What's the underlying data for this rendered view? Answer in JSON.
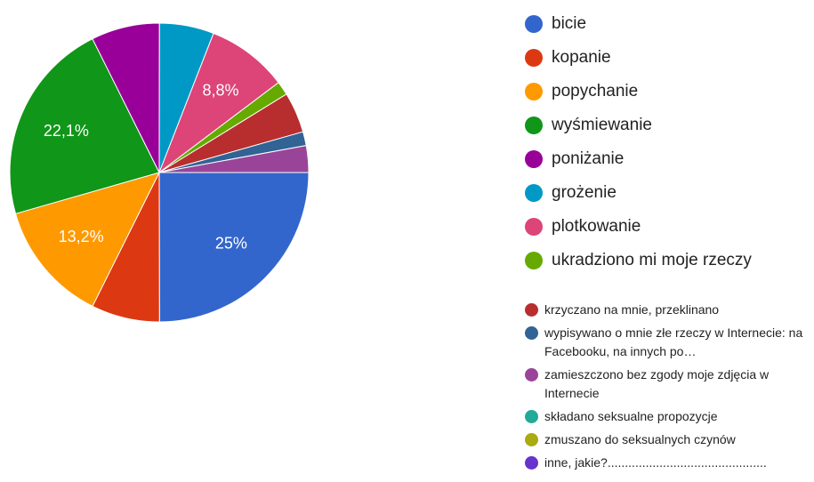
{
  "chart_data": {
    "type": "pie",
    "categories": [
      "bicie",
      "kopanie",
      "popychanie",
      "wyśmiewanie",
      "poniżanie",
      "grożenie",
      "plotkowanie",
      "ukradziono mi moje rzeczy",
      "krzyczano na mnie, przeklinano",
      "wypisywano o mnie złe rzeczy w Internecie: na Facebooku, na innych po…",
      "zamieszczono bez zgody moje zdjęcia w Internecie",
      "składano seksualne propozycje",
      "zmuszano do seksualnych czynów",
      "inne, jakie?.............................................."
    ],
    "values": [
      25,
      7.4,
      13.2,
      22.1,
      7.4,
      5.9,
      8.8,
      1.5,
      4.4,
      1.5,
      2.9,
      0,
      0,
      0
    ],
    "value_labels": [
      "25%",
      null,
      "13,2%",
      "22,1%",
      null,
      null,
      "8,8%",
      null,
      null,
      null,
      null,
      null,
      null,
      null
    ],
    "colors": [
      "#3366cc",
      "#dc3912",
      "#ff9900",
      "#109618",
      "#990099",
      "#0099c6",
      "#dd4477",
      "#66aa00",
      "#b82e2e",
      "#316395",
      "#994499",
      "#22aa99",
      "#aaaa11",
      "#6633cc"
    ]
  }
}
